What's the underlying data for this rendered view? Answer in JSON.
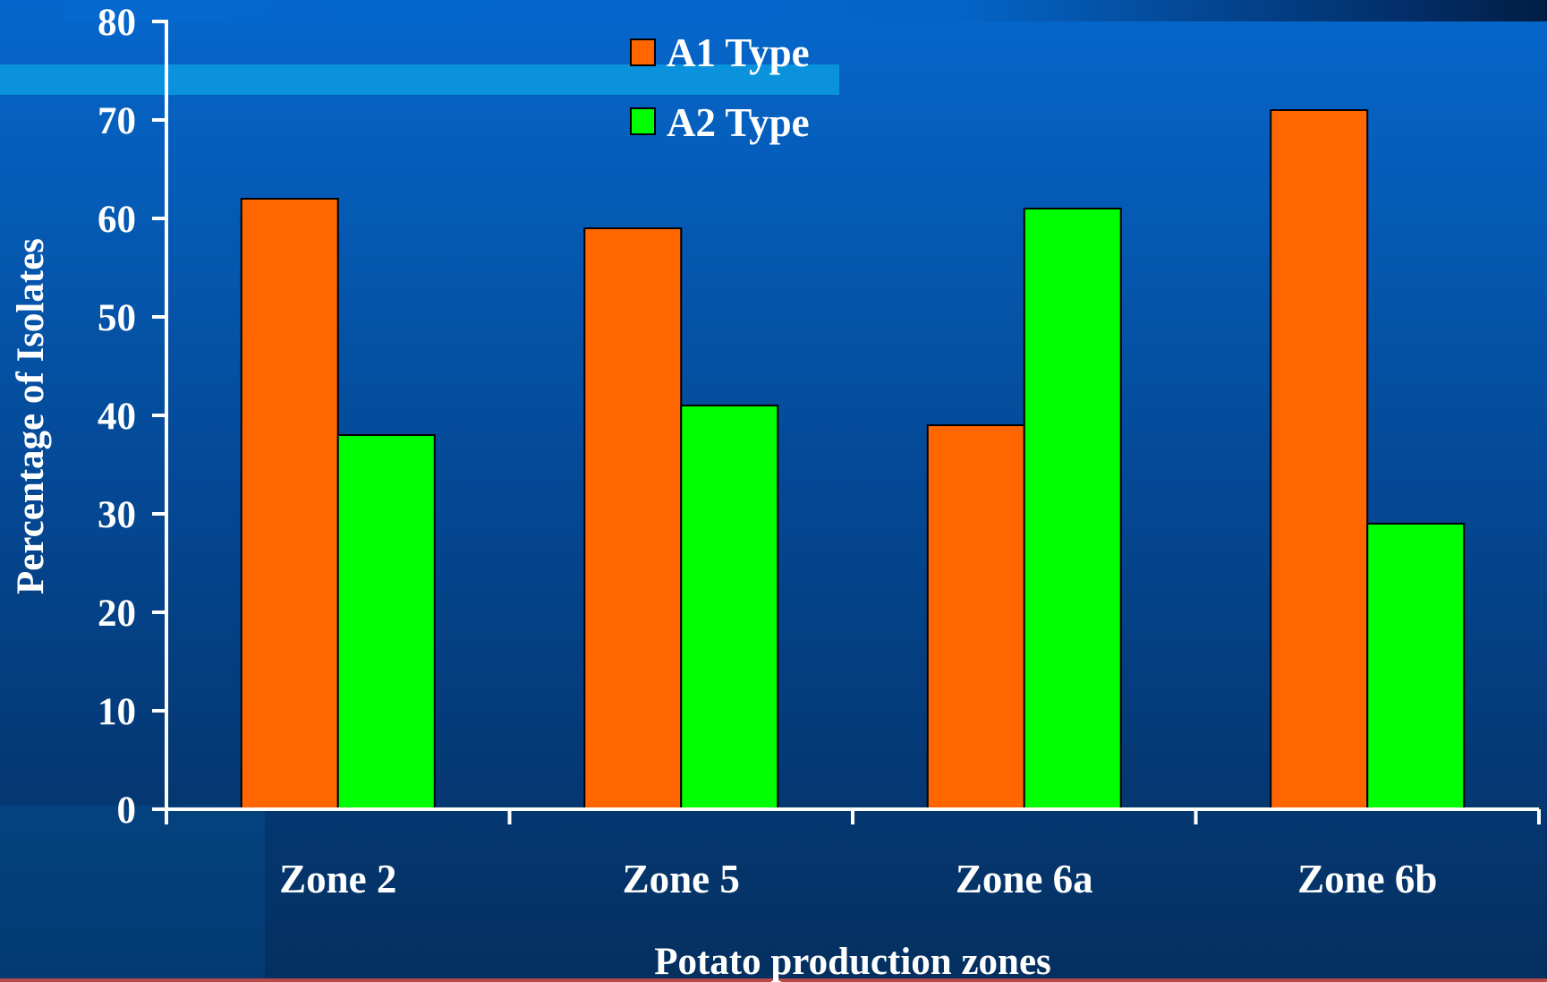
{
  "chart_data": {
    "type": "bar",
    "categories": [
      "Zone 2",
      "Zone 5",
      "Zone 6a",
      "Zone 6b"
    ],
    "series": [
      {
        "name": "A1 Type",
        "color": "#ff6600",
        "values": [
          62,
          59,
          39,
          71
        ]
      },
      {
        "name": "A2 Type",
        "color": "#00ff00",
        "values": [
          38,
          41,
          61,
          29
        ]
      }
    ],
    "xlabel": "Potato production zones",
    "ylabel": "Percentage of Isolates",
    "ylim": [
      0,
      80
    ],
    "yticks": [
      0,
      10,
      20,
      30,
      40,
      50,
      60,
      70,
      80
    ],
    "grid": false,
    "legend_position": "top-center"
  }
}
